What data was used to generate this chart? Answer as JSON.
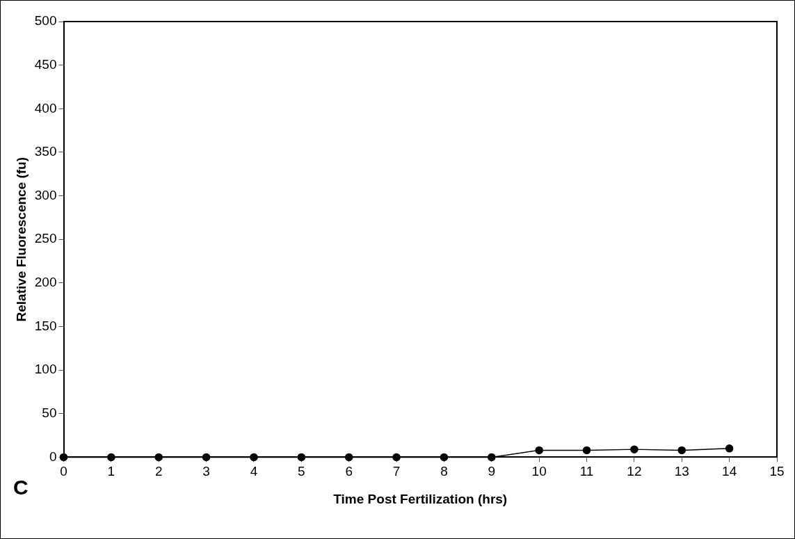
{
  "chart_data": {
    "type": "line",
    "xlabel": "Time Post Fertilization (hrs)",
    "ylabel": "Relative Fluorescence (fu)",
    "x": [
      0,
      1,
      2,
      3,
      4,
      5,
      6,
      7,
      8,
      9,
      10,
      11,
      12,
      13,
      14
    ],
    "series": [
      {
        "color": "#000000",
        "values": [
          0,
          0,
          0,
          0,
          0,
          0,
          0,
          0,
          0,
          0,
          8,
          8,
          9,
          8,
          10
        ]
      }
    ],
    "xlim": [
      0,
      15
    ],
    "xticks": [
      0,
      1,
      2,
      3,
      4,
      5,
      6,
      7,
      8,
      9,
      10,
      11,
      12,
      13,
      14,
      15
    ],
    "ylim": [
      0,
      500
    ],
    "yticks": [
      0,
      50,
      100,
      150,
      200,
      250,
      300,
      350,
      400,
      450,
      500
    ],
    "grid": false,
    "legend": false,
    "marker": "circle",
    "line_style": "solid",
    "annotations": [
      "C"
    ]
  }
}
